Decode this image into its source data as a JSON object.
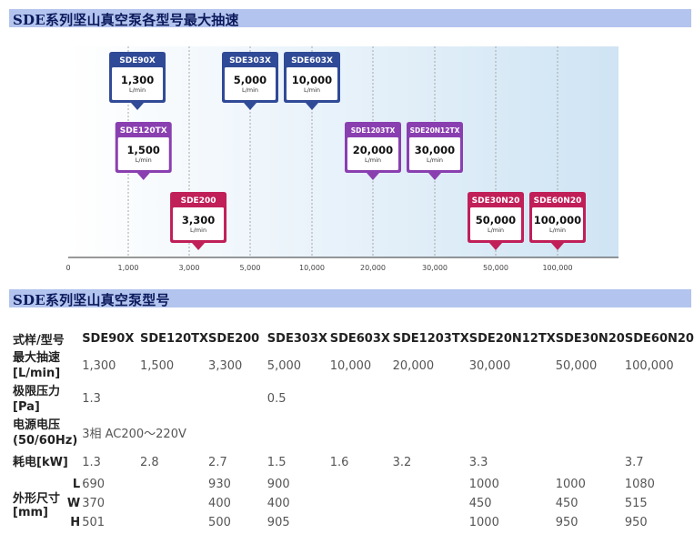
{
  "section1": {
    "title": "SDE系列坚山真空泵各型号最大抽速"
  },
  "section2": {
    "title": "SDE系列坚山真空泵型号"
  },
  "chart_data": {
    "type": "annotated-axis",
    "title": "SDE系列坚山真空泵各型号最大抽速",
    "unit": "L/min",
    "ticks": [
      {
        "label": "0",
        "value": 0
      },
      {
        "label": "1,000",
        "value": 1000
      },
      {
        "label": "3,000",
        "value": 3000
      },
      {
        "label": "5,000",
        "value": 5000
      },
      {
        "label": "10,000",
        "value": 10000
      },
      {
        "label": "20,000",
        "value": 20000
      },
      {
        "label": "30,000",
        "value": 30000
      },
      {
        "label": "50,000",
        "value": 50000
      },
      {
        "label": "100,000",
        "value": 100000
      }
    ],
    "points": [
      {
        "model": "SDE90X",
        "value": 1300,
        "label": "1,300",
        "series": "X"
      },
      {
        "model": "SDE120TX",
        "value": 1500,
        "label": "1,500",
        "series": "TX"
      },
      {
        "model": "SDE200",
        "value": 3300,
        "label": "3,300",
        "series": "N"
      },
      {
        "model": "SDE303X",
        "value": 5000,
        "label": "5,000",
        "series": "X"
      },
      {
        "model": "SDE603X",
        "value": 10000,
        "label": "10,000",
        "series": "X"
      },
      {
        "model": "SDE1203TX",
        "value": 20000,
        "label": "20,000",
        "series": "TX"
      },
      {
        "model": "SDE20N12TX",
        "value": 30000,
        "label": "30,000",
        "series": "TX"
      },
      {
        "model": "SDE30N20",
        "value": 50000,
        "label": "50,000",
        "series": "N"
      },
      {
        "model": "SDE60N20",
        "value": 100000,
        "label": "100,000",
        "series": "N"
      }
    ],
    "colors": {
      "X": "#2f4a96",
      "TX": "#8a3fb0",
      "N": "#c01f58"
    }
  },
  "table": {
    "header_label": "式样/型号",
    "models": [
      "SDE90X",
      "SDE120TX",
      "SDE200",
      "SDE303X",
      "SDE603X",
      "SDE1203TX",
      "SDE20N12TX",
      "SDE30N20",
      "SDE60N20"
    ],
    "rows": {
      "speed": {
        "label1": "最大抽速",
        "label2": "[L/min]",
        "values": [
          "1,300",
          "1,500",
          "3,300",
          "5,000",
          "10,000",
          "20,000",
          "30,000",
          "50,000",
          "100,000"
        ]
      },
      "pressure": {
        "label1": "极限压力",
        "label2": "[Pa]",
        "v1": "1.3",
        "v2": "0.5"
      },
      "voltage": {
        "label1": "电源电压",
        "label2": "(50/60Hz)",
        "value": "3相 AC200～220V"
      },
      "power": {
        "label": "耗电[kW]",
        "values": [
          "1.3",
          "2.8",
          "2.7",
          "1.5",
          "1.6",
          "3.2",
          "3.3",
          "3.7"
        ]
      },
      "dims": {
        "label1": "外形尺寸",
        "label2": "[mm]",
        "L": {
          "label": "L",
          "values": [
            "690",
            "930",
            "900",
            "1000",
            "1000",
            "1080"
          ]
        },
        "W": {
          "label": "W",
          "values": [
            "370",
            "400",
            "400",
            "450",
            "450",
            "515"
          ]
        },
        "H": {
          "label": "H",
          "values": [
            "501",
            "500",
            "905",
            "1000",
            "950",
            "950"
          ]
        }
      }
    }
  }
}
